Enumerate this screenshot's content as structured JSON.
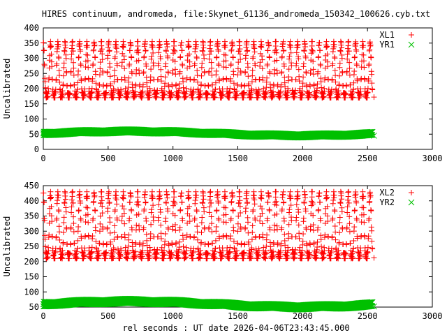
{
  "title": "HIRES continuum, andromeda, file:Skynet_61136_andromeda_150342_100626.cyb.txt",
  "xlabel": "rel seconds : UT date 2026-04-06T23:43:45.000",
  "colors": {
    "red": "#ff0000",
    "green": "#00c000",
    "axis": "#000000"
  },
  "chart_data": [
    {
      "type": "scatter",
      "ylabel": "Uncalibrated",
      "xlim": [
        0,
        3000
      ],
      "ylim": [
        0,
        400
      ],
      "xticks": [
        0,
        500,
        1000,
        1500,
        2000,
        2500,
        3000
      ],
      "yticks": [
        0,
        50,
        100,
        150,
        200,
        250,
        300,
        350,
        400
      ],
      "legend": "top-right",
      "grid": false,
      "series": [
        {
          "name": "XL1",
          "marker": "+",
          "color": "#ff0000",
          "x_range": [
            0,
            2550
          ],
          "oscillation_period": 56,
          "y_min": 170,
          "y_max": 355,
          "y_end": 172
        },
        {
          "name": "YR1",
          "marker": "x",
          "color": "#00c000",
          "x_range": [
            0,
            2550
          ],
          "y_min": 45,
          "y_max": 68,
          "y_end": 45
        }
      ]
    },
    {
      "type": "scatter",
      "ylabel": "Uncalibrated",
      "xlim": [
        0,
        3000
      ],
      "ylim": [
        50,
        450
      ],
      "xticks": [
        0,
        500,
        1000,
        1500,
        2000,
        2500,
        3000
      ],
      "yticks": [
        50,
        100,
        150,
        200,
        250,
        300,
        350,
        400,
        450
      ],
      "legend": "top-right",
      "grid": false,
      "series": [
        {
          "name": "XL2",
          "marker": "+",
          "color": "#ff0000",
          "x_range": [
            0,
            2550
          ],
          "oscillation_period": 56,
          "y_min": 210,
          "y_max": 430,
          "y_end": 212
        },
        {
          "name": "YR2",
          "marker": "x",
          "color": "#00c000",
          "x_range": [
            0,
            2550
          ],
          "y_min": 50,
          "y_max": 80,
          "y_end": 52
        }
      ]
    }
  ]
}
